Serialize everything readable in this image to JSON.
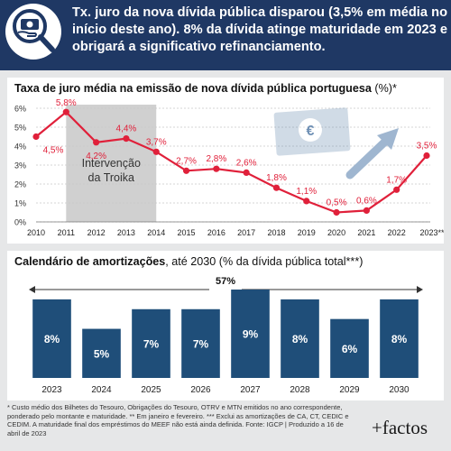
{
  "header": {
    "headline": "Tx. juro da nova dívida pública disparou (3,5% em média no início deste ano). 8% da dívida atinge maturidade em 2023 e obrigará a significativo refinanciamento.",
    "icon": "magnifier-money-hand-icon"
  },
  "chart1": {
    "title_bold": "Taxa de juro média na emissão de nova dívida pública portuguesa",
    "title_rest": " (%)*",
    "annotation_line1": "Intervenção",
    "annotation_line2": "da Troika"
  },
  "chart2": {
    "title_bold": "Calendário de amortizações",
    "title_rest": ", até 2030 (% da dívida pública total***)",
    "total_label": "57%"
  },
  "footnote": {
    "text": "* Custo médio dos Bilhetes do Tesouro, Obrigações do Tesouro, OTRV e MTN emitidos no ano correspondente, ponderado pelo montante e maturidade. ** Em janeiro e fevereiro. *** Exclui as amortizações de CA, CT, CEDIC e CEDIM. A maturidade final dos empréstimos do MEEF não está ainda definida. Fonte: IGCP | Produzido a 16 de abril de 2023"
  },
  "brand": {
    "name": "+factos"
  },
  "colors": {
    "navy": "#1f3864",
    "blue": "#1f4e79",
    "red": "#e0203a",
    "shade": "#d0d0d0",
    "bg": "#e6e7e8"
  },
  "chart_data": [
    {
      "type": "line",
      "title": "Taxa de juro média na emissão de nova dívida pública portuguesa (%)*",
      "x": [
        "2010",
        "2011",
        "2012",
        "2013",
        "2014",
        "2015",
        "2016",
        "2017",
        "2018",
        "2019",
        "2020",
        "2021",
        "2022",
        "2023**"
      ],
      "values": [
        4.5,
        5.8,
        4.2,
        4.4,
        3.7,
        2.7,
        2.8,
        2.6,
        1.8,
        1.1,
        0.5,
        0.6,
        1.7,
        3.5
      ],
      "data_labels": [
        "4,5%",
        "5,8%",
        "4,2%",
        "4,4%",
        "3,7%",
        "2,7%",
        "2,8%",
        "2,6%",
        "1,8%",
        "1,1%",
        "0,5%",
        "0,6%",
        "1,7%",
        "3,5%"
      ],
      "y_ticks": [
        "0%",
        "1%",
        "2%",
        "3%",
        "4%",
        "5%",
        "6%"
      ],
      "ylim": [
        0,
        6
      ],
      "shaded_range": [
        "2011",
        "2014"
      ],
      "shaded_label": "Intervenção da Troika",
      "grid": true
    },
    {
      "type": "bar",
      "title": "Calendário de amortizações, até 2030 (% da dívida pública total***)",
      "categories": [
        "2023",
        "2024",
        "2025",
        "2026",
        "2027",
        "2028",
        "2029",
        "2030"
      ],
      "values": [
        8,
        5,
        7,
        7,
        9,
        8,
        6,
        8
      ],
      "data_labels": [
        "8%",
        "5%",
        "7%",
        "7%",
        "9%",
        "8%",
        "6%",
        "8%"
      ],
      "total_label": "57%",
      "ylim": [
        0,
        9
      ]
    }
  ]
}
